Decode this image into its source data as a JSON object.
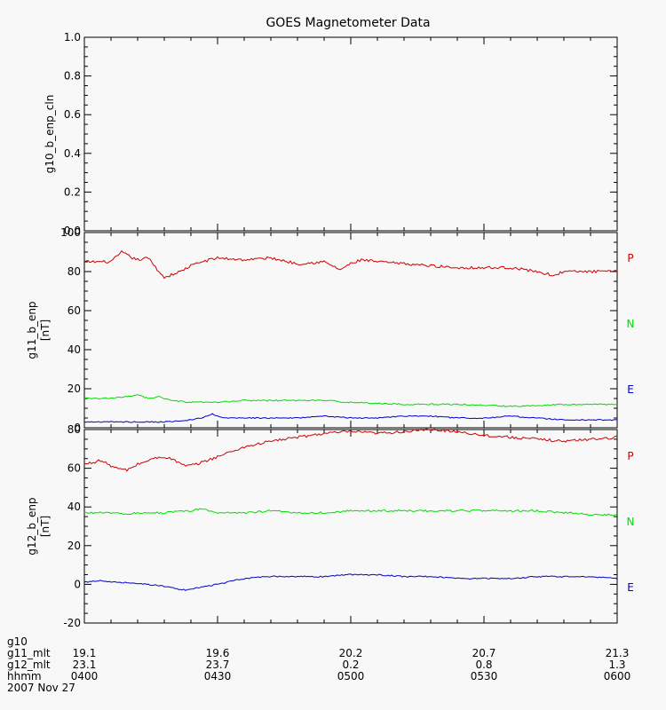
{
  "chart_data": {
    "title": "GOES Magnetometer Data",
    "colors": {
      "P": "#cc0000",
      "N": "#00dd00",
      "E": "#0000cc"
    },
    "panels": [
      {
        "type": "line",
        "ylabel": "g10_b_enp_cln",
        "yunit": "",
        "ylim": [
          0,
          1
        ],
        "yticks": [
          "0.0",
          "0.2",
          "0.4",
          "0.6",
          "0.8",
          "1.0"
        ],
        "series": []
      },
      {
        "type": "line",
        "ylabel": "g11_b_enp",
        "yunit": "[nT]",
        "ylim": [
          0,
          100
        ],
        "yticks": [
          "0",
          "20",
          "40",
          "60",
          "80",
          "100"
        ],
        "series": [
          {
            "name": "P",
            "color_key": "P",
            "noise": 0.7,
            "x": [
              0,
              5,
              7,
              9,
              10,
              12,
              14,
              15,
              18,
              20,
              22,
              25,
              30,
              35,
              40,
              45,
              48,
              50,
              52,
              55,
              60,
              65,
              70,
              75,
              80,
              85,
              88,
              90,
              95,
              100
            ],
            "y": [
              85,
              85,
              90,
              87,
              86,
              87,
              80,
              77,
              80,
              83,
              85,
              87,
              86,
              87,
              84,
              85,
              81,
              84,
              86,
              85,
              84,
              83,
              82,
              82,
              82,
              80,
              78,
              80,
              80,
              80
            ]
          },
          {
            "name": "N",
            "color_key": "N",
            "noise": 0.35,
            "x": [
              0,
              5,
              8,
              10,
              12,
              14,
              16,
              20,
              25,
              30,
              35,
              40,
              45,
              50,
              60,
              70,
              80,
              90,
              100
            ],
            "y": [
              15,
              15,
              16,
              17,
              15,
              16,
              14,
              13,
              13,
              14,
              14,
              14,
              14,
              13,
              12,
              12,
              11,
              12,
              12
            ]
          },
          {
            "name": "E",
            "color_key": "E",
            "noise": 0.3,
            "x": [
              0,
              5,
              10,
              15,
              20,
              22,
              24,
              26,
              30,
              35,
              40,
              45,
              50,
              55,
              60,
              65,
              70,
              75,
              80,
              85,
              90,
              95,
              100
            ],
            "y": [
              3,
              3,
              3,
              3,
              4,
              5,
              7,
              5,
              5,
              5,
              5,
              6,
              5,
              5,
              6,
              6,
              5,
              5,
              6,
              5,
              4,
              4,
              4
            ]
          }
        ]
      },
      {
        "type": "line",
        "ylabel": "g12_b_enp",
        "yunit": "[nT]",
        "ylim": [
          -20,
          80
        ],
        "yticks": [
          "-20",
          "0",
          "20",
          "40",
          "60",
          "80"
        ],
        "series": [
          {
            "name": "P",
            "color_key": "P",
            "noise": 0.7,
            "x": [
              0,
              3,
              6,
              8,
              10,
              13,
              15,
              17,
              19,
              21,
              25,
              30,
              35,
              40,
              45,
              50,
              55,
              60,
              65,
              70,
              75,
              80,
              85,
              90,
              95,
              100
            ],
            "y": [
              62,
              64,
              60,
              59,
              62,
              65,
              66,
              64,
              61,
              62,
              66,
              71,
              74,
              76,
              78,
              79,
              78,
              79,
              80,
              79,
              77,
              76,
              75,
              74,
              75,
              76
            ]
          },
          {
            "name": "N",
            "color_key": "N",
            "noise": 0.5,
            "x": [
              0,
              5,
              8,
              10,
              15,
              20,
              22,
              25,
              30,
              35,
              40,
              45,
              50,
              55,
              60,
              65,
              70,
              75,
              80,
              85,
              90,
              95,
              100
            ],
            "y": [
              37,
              37,
              36,
              37,
              37,
              38,
              39,
              37,
              37,
              38,
              37,
              37,
              38,
              38,
              38,
              38,
              38,
              38,
              38,
              38,
              37,
              36,
              36
            ]
          },
          {
            "name": "E",
            "color_key": "E",
            "noise": 0.35,
            "x": [
              0,
              3,
              6,
              8,
              12,
              15,
              17,
              19,
              21,
              25,
              30,
              35,
              40,
              45,
              50,
              55,
              60,
              65,
              70,
              75,
              80,
              85,
              90,
              95,
              100
            ],
            "y": [
              1,
              2,
              1,
              1,
              0,
              -1,
              -2,
              -3,
              -2,
              0,
              3,
              4,
              4,
              4,
              5,
              5,
              4,
              4,
              3,
              3,
              3,
              4,
              4,
              4,
              3
            ]
          }
        ]
      }
    ],
    "xaxis": {
      "xlim": [
        0,
        100
      ],
      "tick_positions": [
        0,
        25,
        50,
        75,
        100
      ],
      "rows": [
        {
          "label": "g10",
          "values": [
            "",
            "",
            "",
            "",
            ""
          ]
        },
        {
          "label": "g11_mlt",
          "values": [
            "19.1",
            "19.6",
            "20.2",
            "20.7",
            "21.3"
          ]
        },
        {
          "label": "g12_mlt",
          "values": [
            "23.1",
            "23.7",
            "0.2",
            "0.8",
            "1.3"
          ]
        },
        {
          "label": "hhmm",
          "values": [
            "0400",
            "0430",
            "0500",
            "0530",
            "0600"
          ]
        }
      ],
      "date": "2007 Nov 27"
    }
  }
}
